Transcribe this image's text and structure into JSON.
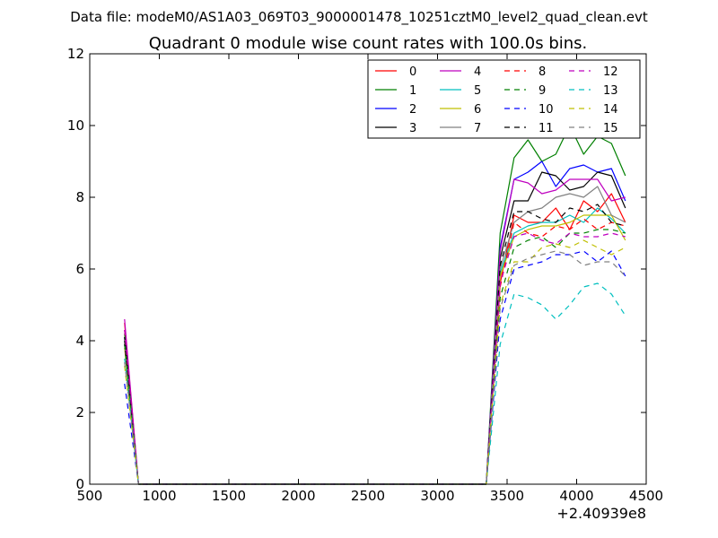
{
  "header": {
    "datafile": "Data file: modeM0/AS1A03_069T03_9000001478_10251cztM0_level2_quad_clean.evt"
  },
  "chart_data": {
    "type": "line",
    "title": "Quadrant 0 module wise count rates with 100.0s bins.",
    "xlabel": "",
    "ylabel": "",
    "x_offset_label": "+2.40939e8",
    "xlim": [
      500,
      4500
    ],
    "ylim": [
      0,
      12
    ],
    "x_ticks": [
      500,
      1000,
      1500,
      2000,
      2500,
      3000,
      3500,
      4000,
      4500
    ],
    "y_ticks": [
      0,
      2,
      4,
      6,
      8,
      10,
      12
    ],
    "x_tick_labels": [
      "500",
      "1000",
      "1500",
      "2000",
      "2500",
      "3000",
      "3500",
      "4000",
      "4500"
    ],
    "y_tick_labels": [
      "0",
      "2",
      "4",
      "6",
      "8",
      "10",
      "12"
    ],
    "grid": false,
    "legend_position": "top-right",
    "x": [
      750,
      850,
      3350,
      3450,
      3550,
      3650,
      3750,
      3850,
      3950,
      4050,
      4150,
      4250,
      4350
    ],
    "series": [
      {
        "name": "0",
        "color": "#ff0000",
        "dash": "solid",
        "values": [
          4.5,
          0,
          0,
          5.6,
          7.5,
          7.3,
          7.3,
          7.7,
          7.1,
          7.9,
          7.6,
          8.1,
          7.3
        ]
      },
      {
        "name": "1",
        "color": "#008000",
        "dash": "solid",
        "values": [
          4.2,
          0,
          0,
          7.0,
          9.1,
          9.6,
          9.0,
          9.2,
          10.0,
          9.2,
          9.7,
          9.5,
          8.6
        ]
      },
      {
        "name": "2",
        "color": "#0000ff",
        "dash": "solid",
        "values": [
          4.1,
          0,
          0,
          6.6,
          8.5,
          8.7,
          9.0,
          8.3,
          8.8,
          8.9,
          8.7,
          8.8,
          7.9
        ]
      },
      {
        "name": "3",
        "color": "#000000",
        "dash": "solid",
        "values": [
          4.1,
          0,
          0,
          6.3,
          7.9,
          7.9,
          8.7,
          8.6,
          8.2,
          8.3,
          8.7,
          8.6,
          7.7
        ]
      },
      {
        "name": "4",
        "color": "#bf00bf",
        "dash": "solid",
        "values": [
          4.6,
          0,
          0,
          6.5,
          8.5,
          8.4,
          8.1,
          8.2,
          8.5,
          8.5,
          8.5,
          7.9,
          8.0
        ]
      },
      {
        "name": "5",
        "color": "#00bfbf",
        "dash": "solid",
        "values": [
          3.9,
          0,
          0,
          5.9,
          7.0,
          7.2,
          7.3,
          7.3,
          7.5,
          7.3,
          7.7,
          7.4,
          7.0
        ]
      },
      {
        "name": "6",
        "color": "#bfbf00",
        "dash": "solid",
        "values": [
          3.8,
          0,
          0,
          5.8,
          6.9,
          7.1,
          7.2,
          7.2,
          7.3,
          7.5,
          7.5,
          7.5,
          6.8
        ]
      },
      {
        "name": "7",
        "color": "#808080",
        "dash": "solid",
        "values": [
          3.9,
          0,
          0,
          6.0,
          7.3,
          7.6,
          7.7,
          8.0,
          8.1,
          8.0,
          8.3,
          7.5,
          7.3
        ]
      },
      {
        "name": "8",
        "color": "#ff0000",
        "dash": "dashed",
        "values": [
          4.3,
          0,
          0,
          5.5,
          7.3,
          7.0,
          6.9,
          7.2,
          7.1,
          7.4,
          7.1,
          7.3,
          7.2
        ]
      },
      {
        "name": "9",
        "color": "#008000",
        "dash": "dashed",
        "values": [
          3.9,
          0,
          0,
          5.2,
          6.6,
          6.8,
          6.9,
          6.6,
          7.0,
          7.0,
          7.1,
          7.1,
          7.0
        ]
      },
      {
        "name": "10",
        "color": "#0000ff",
        "dash": "dashed",
        "values": [
          2.8,
          0,
          0,
          4.6,
          6.0,
          6.1,
          6.2,
          6.4,
          6.4,
          6.5,
          6.2,
          6.5,
          5.8
        ]
      },
      {
        "name": "11",
        "color": "#000000",
        "dash": "dashed",
        "values": [
          4.0,
          0,
          0,
          6.1,
          7.6,
          7.6,
          7.4,
          7.3,
          7.7,
          7.6,
          7.8,
          7.3,
          7.2
        ]
      },
      {
        "name": "12",
        "color": "#bf00bf",
        "dash": "dashed",
        "values": [
          4.3,
          0,
          0,
          5.6,
          6.9,
          7.0,
          6.8,
          6.7,
          7.0,
          6.9,
          6.9,
          7.0,
          6.9
        ]
      },
      {
        "name": "13",
        "color": "#00bfbf",
        "dash": "dashed",
        "values": [
          3.5,
          0,
          0,
          3.9,
          5.3,
          5.2,
          5.0,
          4.6,
          5.0,
          5.5,
          5.6,
          5.3,
          4.7
        ]
      },
      {
        "name": "14",
        "color": "#bfbf00",
        "dash": "dashed",
        "values": [
          3.3,
          0,
          0,
          5.0,
          6.2,
          6.2,
          6.6,
          6.7,
          6.6,
          6.8,
          6.6,
          6.4,
          6.6
        ]
      },
      {
        "name": "15",
        "color": "#808080",
        "dash": "dashed",
        "values": [
          3.4,
          0,
          0,
          4.9,
          6.1,
          6.3,
          6.4,
          6.5,
          6.4,
          6.1,
          6.2,
          6.2,
          5.8
        ]
      }
    ]
  }
}
